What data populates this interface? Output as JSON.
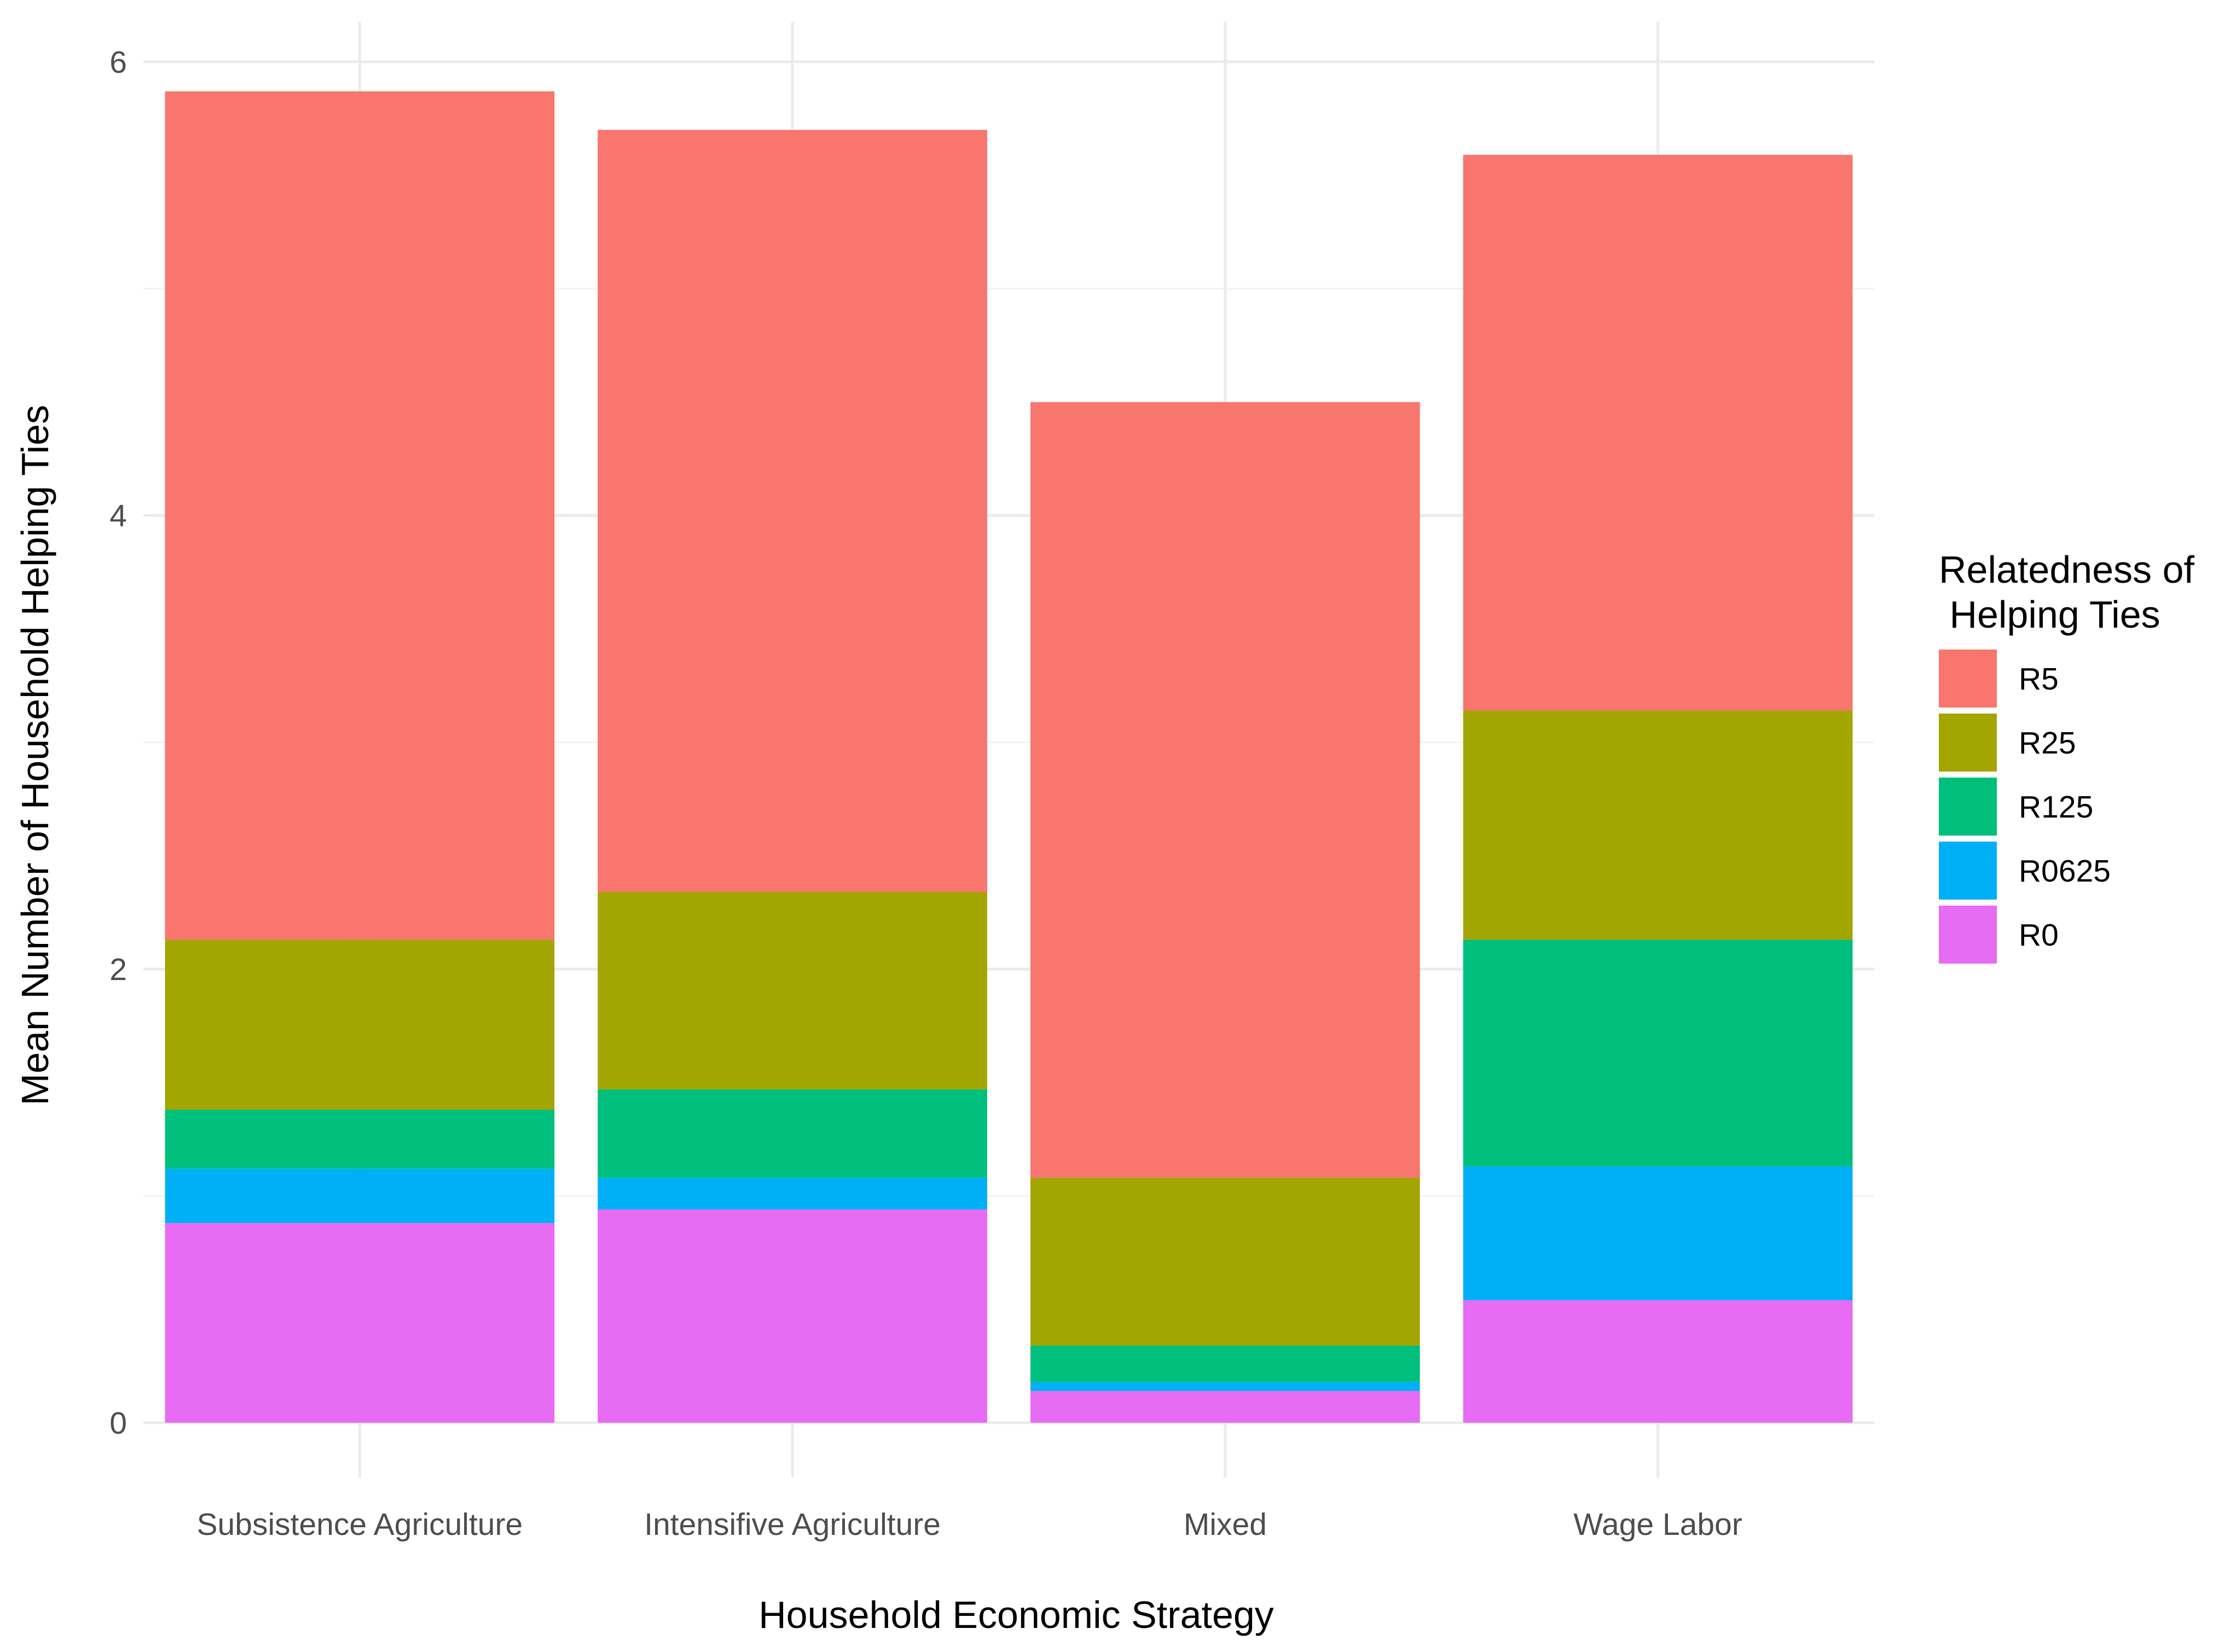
{
  "chart_data": {
    "type": "bar",
    "stacked": true,
    "title": "",
    "xlabel": "Household Economic Strategy",
    "ylabel": "Mean Number of Household Helping Ties",
    "ylim": [
      -0.2,
      6.2
    ],
    "yticks": [
      0,
      2,
      4,
      6
    ],
    "grid": true,
    "categories": [
      "Subsistence Agriculture",
      "Intensifive Agriculture",
      "Mixed",
      "Wage Labor"
    ],
    "legend": {
      "title_lines": [
        "Relatedness of",
        " Helping Ties"
      ],
      "position": "right"
    },
    "series": [
      {
        "name": "R5",
        "color": "#F8766D",
        "values": [
          3.74,
          3.36,
          3.42,
          2.45
        ]
      },
      {
        "name": "R25",
        "color": "#A3A500",
        "values": [
          0.75,
          0.87,
          0.74,
          1.01
        ]
      },
      {
        "name": "R125",
        "color": "#00BF7D",
        "values": [
          0.26,
          0.39,
          0.16,
          1.0
        ]
      },
      {
        "name": "R0625",
        "color": "#00B0F6",
        "values": [
          0.24,
          0.14,
          0.04,
          0.59
        ]
      },
      {
        "name": "R0",
        "color": "#E76BF3",
        "values": [
          0.88,
          0.94,
          0.14,
          0.54
        ]
      }
    ]
  }
}
